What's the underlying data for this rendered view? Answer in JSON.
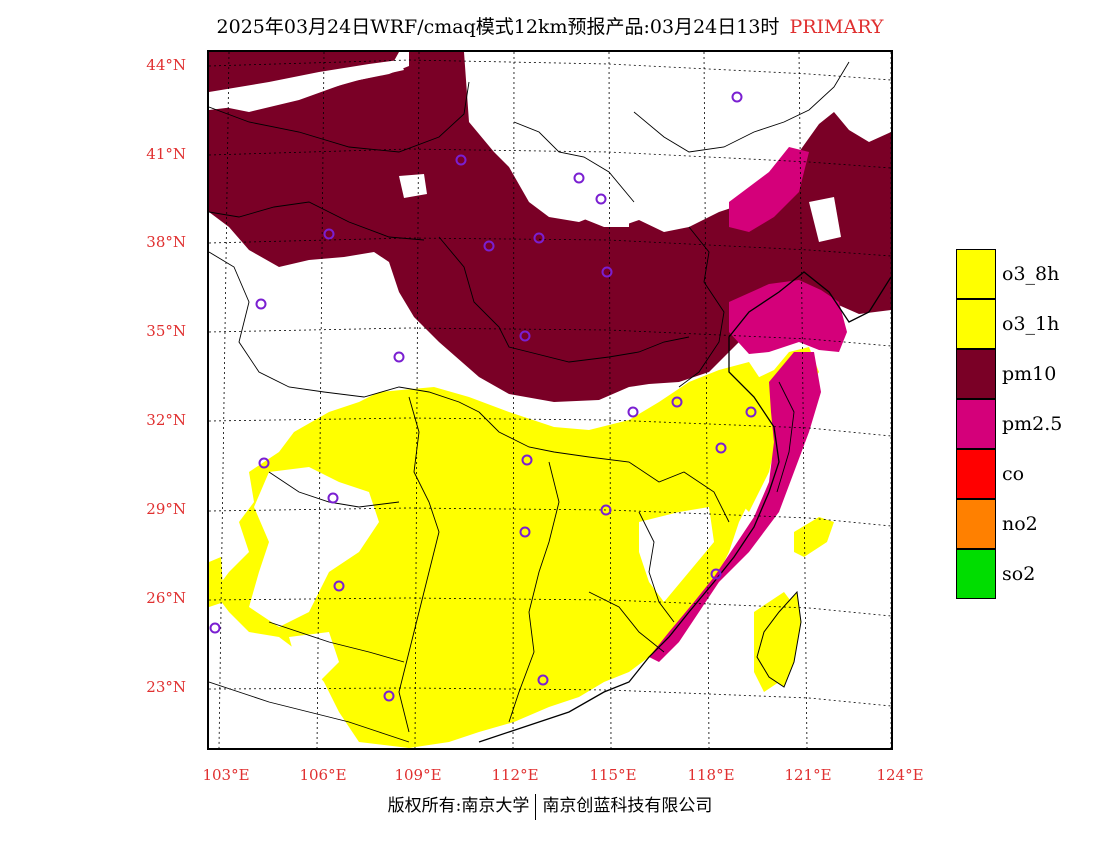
{
  "header": {
    "title": "2025年03月24日WRF/cmaq模式12km预报产品:03月24日13时",
    "tag": "PRIMARY",
    "tag_color": "#e03030"
  },
  "map": {
    "lat_labels": [
      "44°N",
      "41°N",
      "38°N",
      "35°N",
      "32°N",
      "29°N",
      "26°N",
      "23°N"
    ],
    "lon_labels": [
      "103°E",
      "106°E",
      "109°E",
      "112°E",
      "115°E",
      "118°E",
      "121°E",
      "124°E"
    ],
    "station_marker_color": "#7a1fd1",
    "label_color": "#e03030"
  },
  "legend": {
    "items": [
      {
        "label": "o3_8h",
        "color": "#ffff00"
      },
      {
        "label": "o3_1h",
        "color": "#ffff00"
      },
      {
        "label": "pm10",
        "color": "#7a0026"
      },
      {
        "label": "pm2.5",
        "color": "#d4007a"
      },
      {
        "label": "co",
        "color": "#ff0000"
      },
      {
        "label": "no2",
        "color": "#ff8000"
      },
      {
        "label": "so2",
        "color": "#00dd00"
      }
    ]
  },
  "footer": {
    "left": "版权所有:南京大学",
    "right": "南京创蓝科技有限公司"
  }
}
